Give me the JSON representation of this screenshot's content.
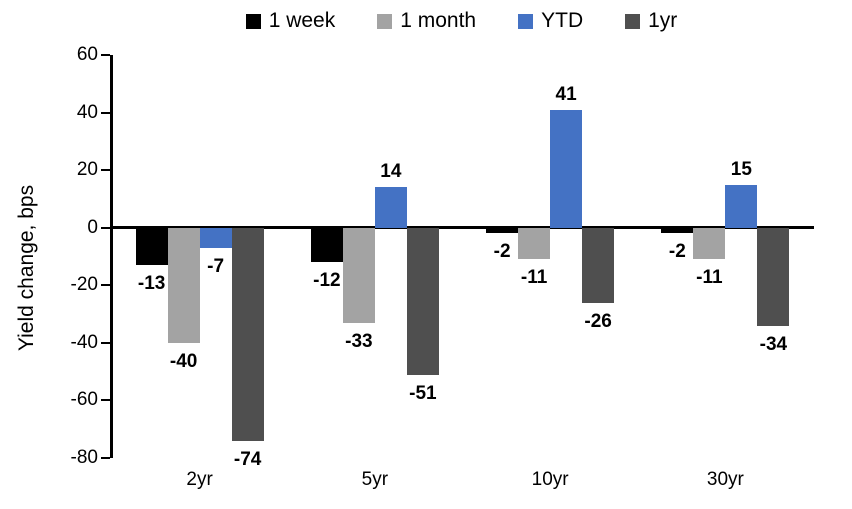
{
  "chart_data": {
    "type": "bar",
    "title": "",
    "ylabel": "Yield change, bps",
    "xlabel": "",
    "ylim": [
      -80,
      60
    ],
    "yticks": [
      60,
      40,
      20,
      0,
      -20,
      -40,
      -60,
      -80
    ],
    "categories": [
      "2yr",
      "5yr",
      "10yr",
      "30yr"
    ],
    "series": [
      {
        "name": "1 week",
        "color": "#000000",
        "values": [
          -13,
          -12,
          -2,
          -2
        ]
      },
      {
        "name": "1 month",
        "color": "#A3A3A3",
        "values": [
          -40,
          -33,
          -11,
          -11
        ]
      },
      {
        "name": "YTD",
        "color": "#4472C4",
        "values": [
          -7,
          14,
          41,
          15
        ]
      },
      {
        "name": "1yr",
        "color": "#4F4F4F",
        "values": [
          -74,
          -51,
          -26,
          -34
        ]
      }
    ],
    "legend_position": "top",
    "grid": false,
    "data_labels": true,
    "baseline": 0
  }
}
